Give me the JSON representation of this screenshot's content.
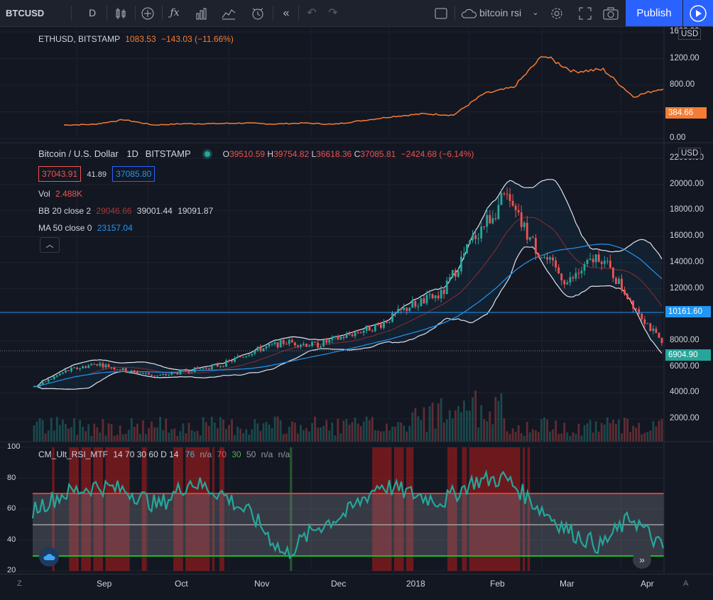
{
  "toolbar": {
    "symbol": "BTCUSD",
    "interval": "D",
    "layout_name": "bitcoin rsi",
    "publish_label": "Publish"
  },
  "eth_pane": {
    "legend_symbol": "ETHUSD, BITSTAMP",
    "legend_price": "1083.53",
    "legend_change": "−143.03 (−11.66%)",
    "currency": "USD",
    "last_badge": "384.66",
    "axis_ticks": [
      "1600.00",
      "1200.00",
      "800.00",
      "400.00",
      "0.00"
    ]
  },
  "main_pane": {
    "title": "Bitcoin / U.S. Dollar",
    "interval": "1D",
    "exchange": "BITSTAMP",
    "open_label": "O",
    "open": "39510.59",
    "high_label": "H",
    "high": "39754.82",
    "low_label": "L",
    "low": "36618.36",
    "close_label": "C",
    "close": "37085.81",
    "change": "−2424.68 (−6.14%)",
    "bid": "37043.91",
    "spread": "41.89",
    "ask": "37085.80",
    "vol_label": "Vol",
    "vol_value": "2.488K",
    "bb_label": "BB 20 close 2",
    "bb_basis": "29046.66",
    "bb_upper": "39001.44",
    "bb_lower": "19091.87",
    "ma_label": "MA 50 close 0",
    "ma_value": "23157.04",
    "currency": "USD",
    "hline_badge": "10161.60",
    "last_badge": "6904.90",
    "axis_ticks": [
      "22000.00",
      "20000.00",
      "18000.00",
      "16000.00",
      "14000.00",
      "12000.00",
      "10000.00",
      "8000.00",
      "6000.00",
      "4000.00",
      "2000.00"
    ]
  },
  "rsi_pane": {
    "legend_name": "CM_Ult_RSI_MTF",
    "legend_params": "14 70 30 60 D 14",
    "v1": "76",
    "v2": "n/a",
    "v3": "70",
    "v4": "30",
    "v5": "50",
    "v6": "n/a",
    "v7": "n/a",
    "axis_ticks": [
      "100",
      "80",
      "60",
      "40",
      "20"
    ]
  },
  "x_axis": {
    "ticks": [
      "Sep",
      "Oct",
      "Nov",
      "Dec",
      "2018",
      "Feb",
      "Mar",
      "Apr"
    ],
    "left_btn": "Z",
    "right_btn": "A"
  },
  "chart_data": [
    {
      "type": "line",
      "series": [
        {
          "name": "ETHUSD, BITSTAMP",
          "x_index": [
            0,
            5,
            10,
            15,
            20,
            25,
            30,
            35,
            40,
            45,
            50,
            55,
            60,
            65,
            70,
            75,
            80,
            85,
            90,
            95,
            100
          ],
          "values": [
            290,
            300,
            370,
            290,
            310,
            310,
            320,
            305,
            320,
            300,
            360,
            420,
            460,
            440,
            760,
            860,
            1350,
            1100,
            1130,
            720,
            850
          ]
        }
      ],
      "ylim": [
        0,
        1700
      ]
    },
    {
      "type": "line",
      "series": [
        {
          "name": "Bitcoin / U.S. Dollar",
          "x_index": [
            0,
            5,
            10,
            15,
            20,
            25,
            30,
            35,
            40,
            45,
            50,
            55,
            60,
            65,
            70,
            75,
            80,
            85,
            90,
            95,
            100
          ],
          "values": [
            2800,
            4200,
            4900,
            4200,
            3800,
            4300,
            4800,
            6000,
            6800,
            6500,
            7400,
            8300,
            10000,
            11000,
            16000,
            19500,
            15000,
            12000,
            14500,
            10500,
            6600
          ]
        }
      ],
      "ylim": [
        0,
        23000
      ]
    },
    {
      "type": "line",
      "series": [
        {
          "name": "CM_Ult_RSI_MTF",
          "x_index": [
            0,
            5,
            10,
            15,
            20,
            25,
            30,
            35,
            40,
            45,
            50,
            55,
            60,
            65,
            70,
            75,
            80,
            85,
            90,
            95,
            100
          ],
          "values": [
            60,
            70,
            75,
            72,
            62,
            78,
            70,
            55,
            30,
            48,
            58,
            76,
            70,
            65,
            78,
            80,
            62,
            46,
            36,
            55,
            34
          ]
        }
      ],
      "ylim": [
        20,
        100
      ]
    }
  ]
}
